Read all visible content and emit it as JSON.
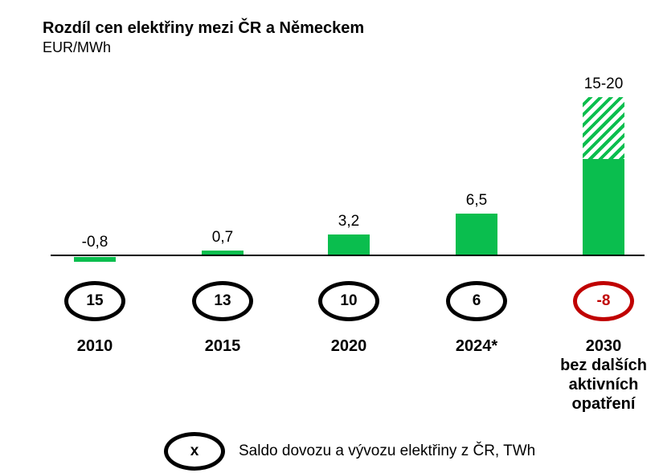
{
  "page": {
    "title": "Rozdíl cen elektřiny mezi ČR a Německem",
    "subtitle": "EUR/MWh"
  },
  "chart_data": {
    "type": "bar",
    "title": "Rozdíl cen elektřiny mezi ČR a Německem",
    "ylabel": "EUR/MWh",
    "grid": false,
    "categories": [
      "2010",
      "2015",
      "2020",
      "2024*",
      "2030"
    ],
    "category_display": [
      "2010",
      "2015",
      "2020",
      "2024*",
      "2030\nbez dalších\naktivních\nopatření"
    ],
    "values": [
      -0.8,
      0.7,
      3.2,
      6.5,
      15
    ],
    "value_labels": [
      "-0,8",
      "0,7",
      "3,2",
      "6,5",
      "15-20"
    ],
    "bar_2030_range": {
      "solid_value": 15,
      "hatched_max": 20,
      "label": "15-20",
      "style": "hatched"
    },
    "bar_color": "#0abe4e",
    "secondary_series": {
      "name": "Saldo dovozu a vývozu elektřiny z ČR, TWh",
      "unit": "TWh",
      "values": [
        15,
        13,
        10,
        6,
        -8
      ],
      "labels": [
        "15",
        "13",
        "10",
        "6",
        "-8"
      ],
      "highlight_index": 4,
      "highlight_color": "#c00000"
    }
  },
  "legend": {
    "symbol": "x",
    "text": "Saldo dovozu a vývozu elektřiny z ČR, TWh"
  },
  "colors": {
    "green": "#0abe4e",
    "red": "#c00000",
    "axis": "#000000"
  }
}
